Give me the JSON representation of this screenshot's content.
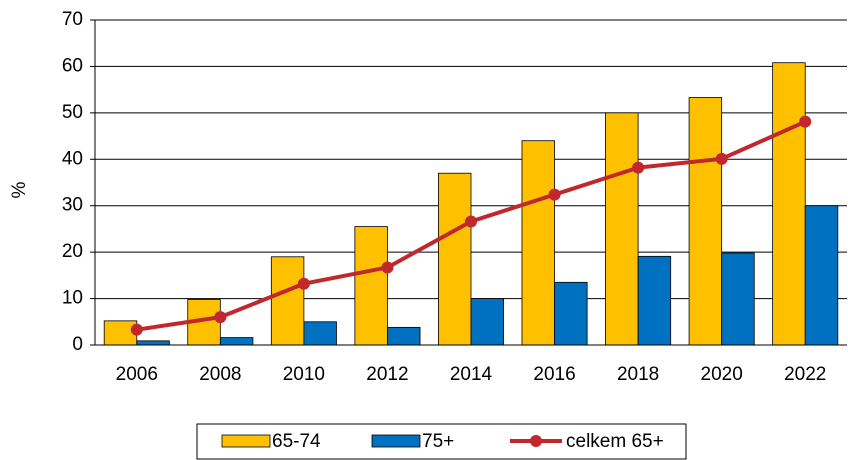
{
  "chart_data": {
    "type": "bar",
    "ylabel": "%",
    "categories": [
      "2006",
      "2008",
      "2010",
      "2012",
      "2014",
      "2016",
      "2018",
      "2020",
      "2022"
    ],
    "series": [
      {
        "name": "65-74",
        "type": "bar",
        "color": "#ffc000",
        "values": [
          5.2,
          9.8,
          19.0,
          25.5,
          37.0,
          44.0,
          50.0,
          53.3,
          60.8
        ]
      },
      {
        "name": "75+",
        "type": "bar",
        "color": "#0070c0",
        "values": [
          0.9,
          1.6,
          5.0,
          3.8,
          10.0,
          13.5,
          19.1,
          19.8,
          30.0
        ]
      },
      {
        "name": "celkem 65+",
        "type": "line",
        "color": "#c0282d",
        "values": [
          3.3,
          6.0,
          13.2,
          16.7,
          26.6,
          32.4,
          38.2,
          40.1,
          48.1
        ]
      }
    ],
    "ylim": [
      0,
      70
    ],
    "yticks": [
      0,
      10,
      20,
      30,
      40,
      50,
      60,
      70
    ],
    "grid": true,
    "legend": "bottom"
  }
}
